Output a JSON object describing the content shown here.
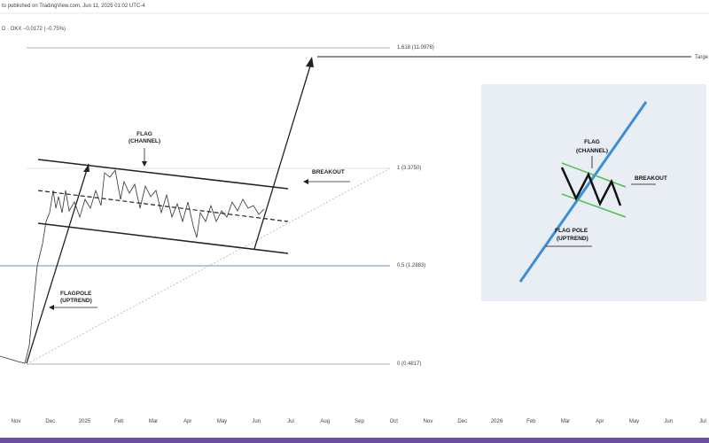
{
  "header": {
    "published": "to published on TradingView.com, Jun 11, 2025 01:02 UTC-4",
    "symbol": "D · OKX  −0.0172 (−0.75%)"
  },
  "levels": [
    "1.618 (11.0978)",
    "1 (3.3750)",
    "0.5 (1.2883)",
    "0 (0.4817)"
  ],
  "target": "Targe",
  "annotations": {
    "flag": "FLAG",
    "channel": "(CHANNEL)",
    "breakout": "BREAKOUT",
    "flagpole": "FLAGPOLE",
    "uptrend": "(UPTREND)"
  },
  "inset": {
    "flag": "FLAG",
    "channel": "(CHANNEL)",
    "breakout": "BREAKOUT",
    "flagpole": "FLAG POLE",
    "uptrend": "(UPTREND)"
  },
  "x_axis": [
    "Nov",
    "Dec",
    "2025",
    "Feb",
    "Mar",
    "Apr",
    "May",
    "Jun",
    "Jul",
    "Aug",
    "Sep",
    "Oct",
    "Nov",
    "Dec",
    "2026",
    "Feb",
    "Mar",
    "Apr",
    "May",
    "Jun",
    "Jul"
  ]
}
